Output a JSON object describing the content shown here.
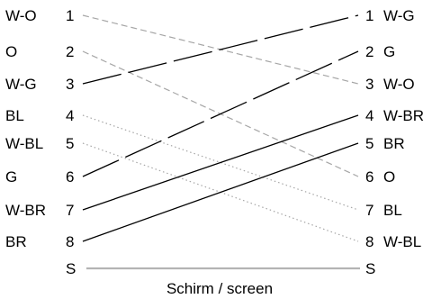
{
  "title": "",
  "left_pins": [
    {
      "color": "W-O",
      "pin": "1"
    },
    {
      "color": "O",
      "pin": "2"
    },
    {
      "color": "W-G",
      "pin": "3"
    },
    {
      "color": "BL",
      "pin": "4"
    },
    {
      "color": "W-BL",
      "pin": "5"
    },
    {
      "color": "G",
      "pin": "6"
    },
    {
      "color": "W-BR",
      "pin": "7"
    },
    {
      "color": "BR",
      "pin": "8"
    },
    {
      "color": "",
      "pin": "S"
    }
  ],
  "right_pins": [
    {
      "pin": "1",
      "color": "W-G"
    },
    {
      "pin": "2",
      "color": "G"
    },
    {
      "pin": "3",
      "color": "W-O"
    },
    {
      "pin": "4",
      "color": "W-BR"
    },
    {
      "pin": "5",
      "color": "BR"
    },
    {
      "pin": "6",
      "color": "O"
    },
    {
      "pin": "7",
      "color": "BL"
    },
    {
      "pin": "8",
      "color": "W-BL"
    },
    {
      "pin": "S",
      "color": ""
    }
  ],
  "connections": [
    {
      "from": "1",
      "to": "3",
      "style": "dashed-gray"
    },
    {
      "from": "2",
      "to": "6",
      "style": "dashed-gray"
    },
    {
      "from": "3",
      "to": "1",
      "style": "dash-dot-black"
    },
    {
      "from": "4",
      "to": "7",
      "style": "dotted-gray"
    },
    {
      "from": "5",
      "to": "8",
      "style": "dotted-gray"
    },
    {
      "from": "6",
      "to": "2",
      "style": "dash-dot-black"
    },
    {
      "from": "7",
      "to": "4",
      "style": "solid-black"
    },
    {
      "from": "8",
      "to": "5",
      "style": "solid-black"
    },
    {
      "from": "S",
      "to": "S",
      "style": "solid-lightgray"
    }
  ],
  "screen_caption": "Schirm / screen",
  "colors": {
    "black": "#000000",
    "gray": "#a6a6a6",
    "light_gray": "#b4b4b4"
  }
}
